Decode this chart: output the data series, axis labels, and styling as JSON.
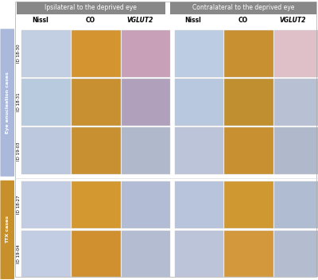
{
  "fig_width": 4.0,
  "fig_height": 3.52,
  "dpi": 100,
  "bg_color": "#ffffff",
  "left_bar_color": "#a8b8d8",
  "bottom_bar_color": "#c8902a",
  "left_bar_eye_enucleation_color": "#aab8dc",
  "left_bar_ttx_color": "#c8902a",
  "header_ipsi_color": "#8a8a8a",
  "header_contra_color": "#8a8a8a",
  "col_headers": [
    "Nissl",
    "CO",
    "VGLUT2",
    "Nissl",
    "CO",
    "VGLUT2"
  ],
  "row_ids": [
    "ID 18-30",
    "ID 18-31",
    "ID 19-03",
    "ID 18-27",
    "ID 19-04"
  ],
  "group_labels": [
    "Eye enucleation cases",
    "TTX cases"
  ],
  "group_rows": [
    [
      0,
      1,
      2
    ],
    [
      3,
      4
    ]
  ],
  "ipsi_label": "Ipsilateral to the deprived eye",
  "contra_label": "Contralateral to the deprived eye",
  "cell_colors": {
    "nissl": "#c8d4e8",
    "co_warm": "#d4922a",
    "co_orange": "#e8a030",
    "vglut2_pink": "#e8c8c8",
    "vglut2_blue": "#b8c8dc",
    "vglut2_purple": "#c0a8c8"
  },
  "row_panel_colors": [
    [
      "#c0cce0",
      "#c8902a",
      "#c8a0b8",
      "#bccade",
      "#c09030",
      "#dcc0c4"
    ],
    [
      "#b8c8de",
      "#c89028",
      "#b8a8c0",
      "#b8c4dc",
      "#c09030",
      "#b8c0d0"
    ],
    [
      "#bcc8de",
      "#c89028",
      "#b0b8cc",
      "#bcc4da",
      "#c89030",
      "#b0b8cc"
    ],
    [
      "#c0cce0",
      "#d4982c",
      "#b0bcd0",
      "#b8c2da",
      "#d09830",
      "#b0bcd0"
    ],
    [
      "#c0cce0",
      "#d09030",
      "#b4bcd0",
      "#bcc4da",
      "#d4983c",
      "#b4bcd0"
    ]
  ]
}
